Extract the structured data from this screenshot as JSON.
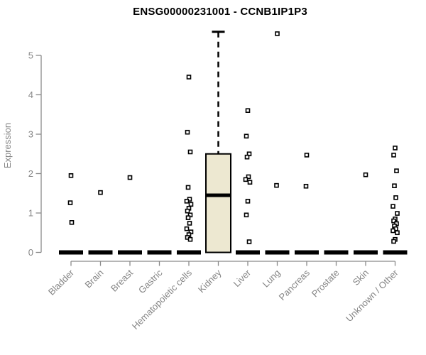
{
  "chart_data": {
    "type": "box",
    "title": "ENSG00000231001 - CCNB1IP1P3",
    "ylabel": "Expression",
    "xlabel": "",
    "ylim": [
      0,
      5.7
    ],
    "yticks": [
      0,
      1,
      2,
      3,
      4,
      5
    ],
    "grid": false,
    "legend": null,
    "categories": [
      "Bladder",
      "Brain",
      "Breast",
      "Gastric",
      "Hematopoietic cells",
      "Kidney",
      "Liver",
      "Lung",
      "Pancreas",
      "Prostate",
      "Skin",
      "Unknown / Other"
    ],
    "boxes": [
      {
        "category": "Bladder",
        "q1": 0,
        "median": 0,
        "q3": 0,
        "whisker_low": 0,
        "whisker_high": 0,
        "outliers": [
          1.95,
          1.26,
          0.76
        ]
      },
      {
        "category": "Brain",
        "q1": 0,
        "median": 0,
        "q3": 0,
        "whisker_low": 0,
        "whisker_high": 0,
        "outliers": [
          1.52
        ]
      },
      {
        "category": "Breast",
        "q1": 0,
        "median": 0,
        "q3": 0,
        "whisker_low": 0,
        "whisker_high": 0,
        "outliers": [
          1.9
        ]
      },
      {
        "category": "Gastric",
        "q1": 0,
        "median": 0,
        "q3": 0,
        "whisker_low": 0,
        "whisker_high": 0,
        "outliers": []
      },
      {
        "category": "Hematopoietic cells",
        "q1": 0,
        "median": 0,
        "q3": 0,
        "whisker_low": 0,
        "whisker_high": 0,
        "outliers": [
          4.45,
          3.05,
          2.55,
          1.65,
          1.35,
          1.3,
          1.22,
          1.12,
          1.05,
          0.95,
          0.88,
          0.74,
          0.6,
          0.52,
          0.45,
          0.38,
          0.33
        ]
      },
      {
        "category": "Kidney",
        "q1": 0,
        "median": 1.45,
        "q3": 2.5,
        "whisker_low": 0,
        "whisker_high": 5.6,
        "outliers": []
      },
      {
        "category": "Liver",
        "q1": 0,
        "median": 0,
        "q3": 0,
        "whisker_low": 0,
        "whisker_high": 0,
        "outliers": [
          3.6,
          2.95,
          2.5,
          2.42,
          1.92,
          1.85,
          1.78,
          1.3,
          0.95,
          0.27
        ]
      },
      {
        "category": "Lung",
        "q1": 0,
        "median": 0,
        "q3": 0,
        "whisker_low": 0,
        "whisker_high": 0,
        "outliers": [
          5.55,
          1.7
        ]
      },
      {
        "category": "Pancreas",
        "q1": 0,
        "median": 0,
        "q3": 0,
        "whisker_low": 0,
        "whisker_high": 0,
        "outliers": [
          2.47,
          1.68
        ]
      },
      {
        "category": "Prostate",
        "q1": 0,
        "median": 0,
        "q3": 0,
        "whisker_low": 0,
        "whisker_high": 0,
        "outliers": []
      },
      {
        "category": "Skin",
        "q1": 0,
        "median": 0,
        "q3": 0,
        "whisker_low": 0,
        "whisker_high": 0,
        "outliers": [
          1.97
        ]
      },
      {
        "category": "Unknown / Other",
        "q1": 0,
        "median": 0,
        "q3": 0,
        "whisker_low": 0,
        "whisker_high": 0,
        "outliers": [
          2.65,
          2.47,
          2.07,
          1.69,
          1.39,
          1.17,
          0.99,
          0.85,
          0.8,
          0.73,
          0.67,
          0.6,
          0.55,
          0.5,
          0.33,
          0.28
        ]
      }
    ],
    "colors": {
      "box_fill": "#ede8d1",
      "box_stroke": "#000000",
      "median": "#000000",
      "whisker": "#000000",
      "outlier_stroke": "#000000",
      "axis": "#8a8a8a",
      "axis_text": "#858585",
      "title_text": "#000000",
      "background": "#ffffff"
    }
  }
}
